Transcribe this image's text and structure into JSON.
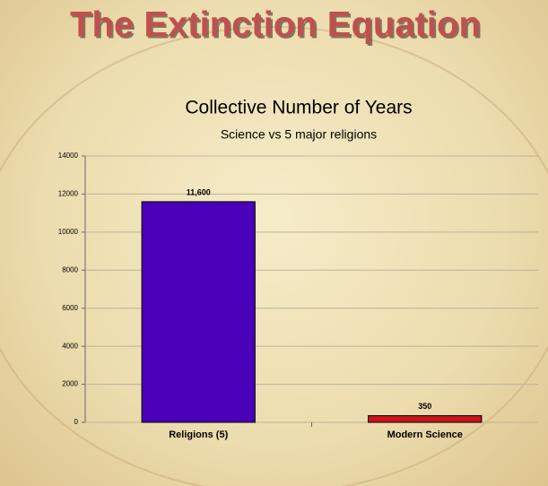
{
  "title": "The Extinction Equation",
  "chart_data": {
    "type": "bar",
    "title": "Collective Number of Years",
    "subtitle": "Science vs 5 major religions",
    "categories": [
      "Religions (5)",
      "Modern Science"
    ],
    "values": [
      11600,
      350
    ],
    "value_labels": [
      "11,600",
      "350"
    ],
    "colors": [
      "#4a00b8",
      "#c8141a"
    ],
    "ylim": [
      0,
      14000
    ],
    "yticks": [
      0,
      2000,
      4000,
      6000,
      8000,
      10000,
      12000,
      14000
    ],
    "grid": true
  }
}
